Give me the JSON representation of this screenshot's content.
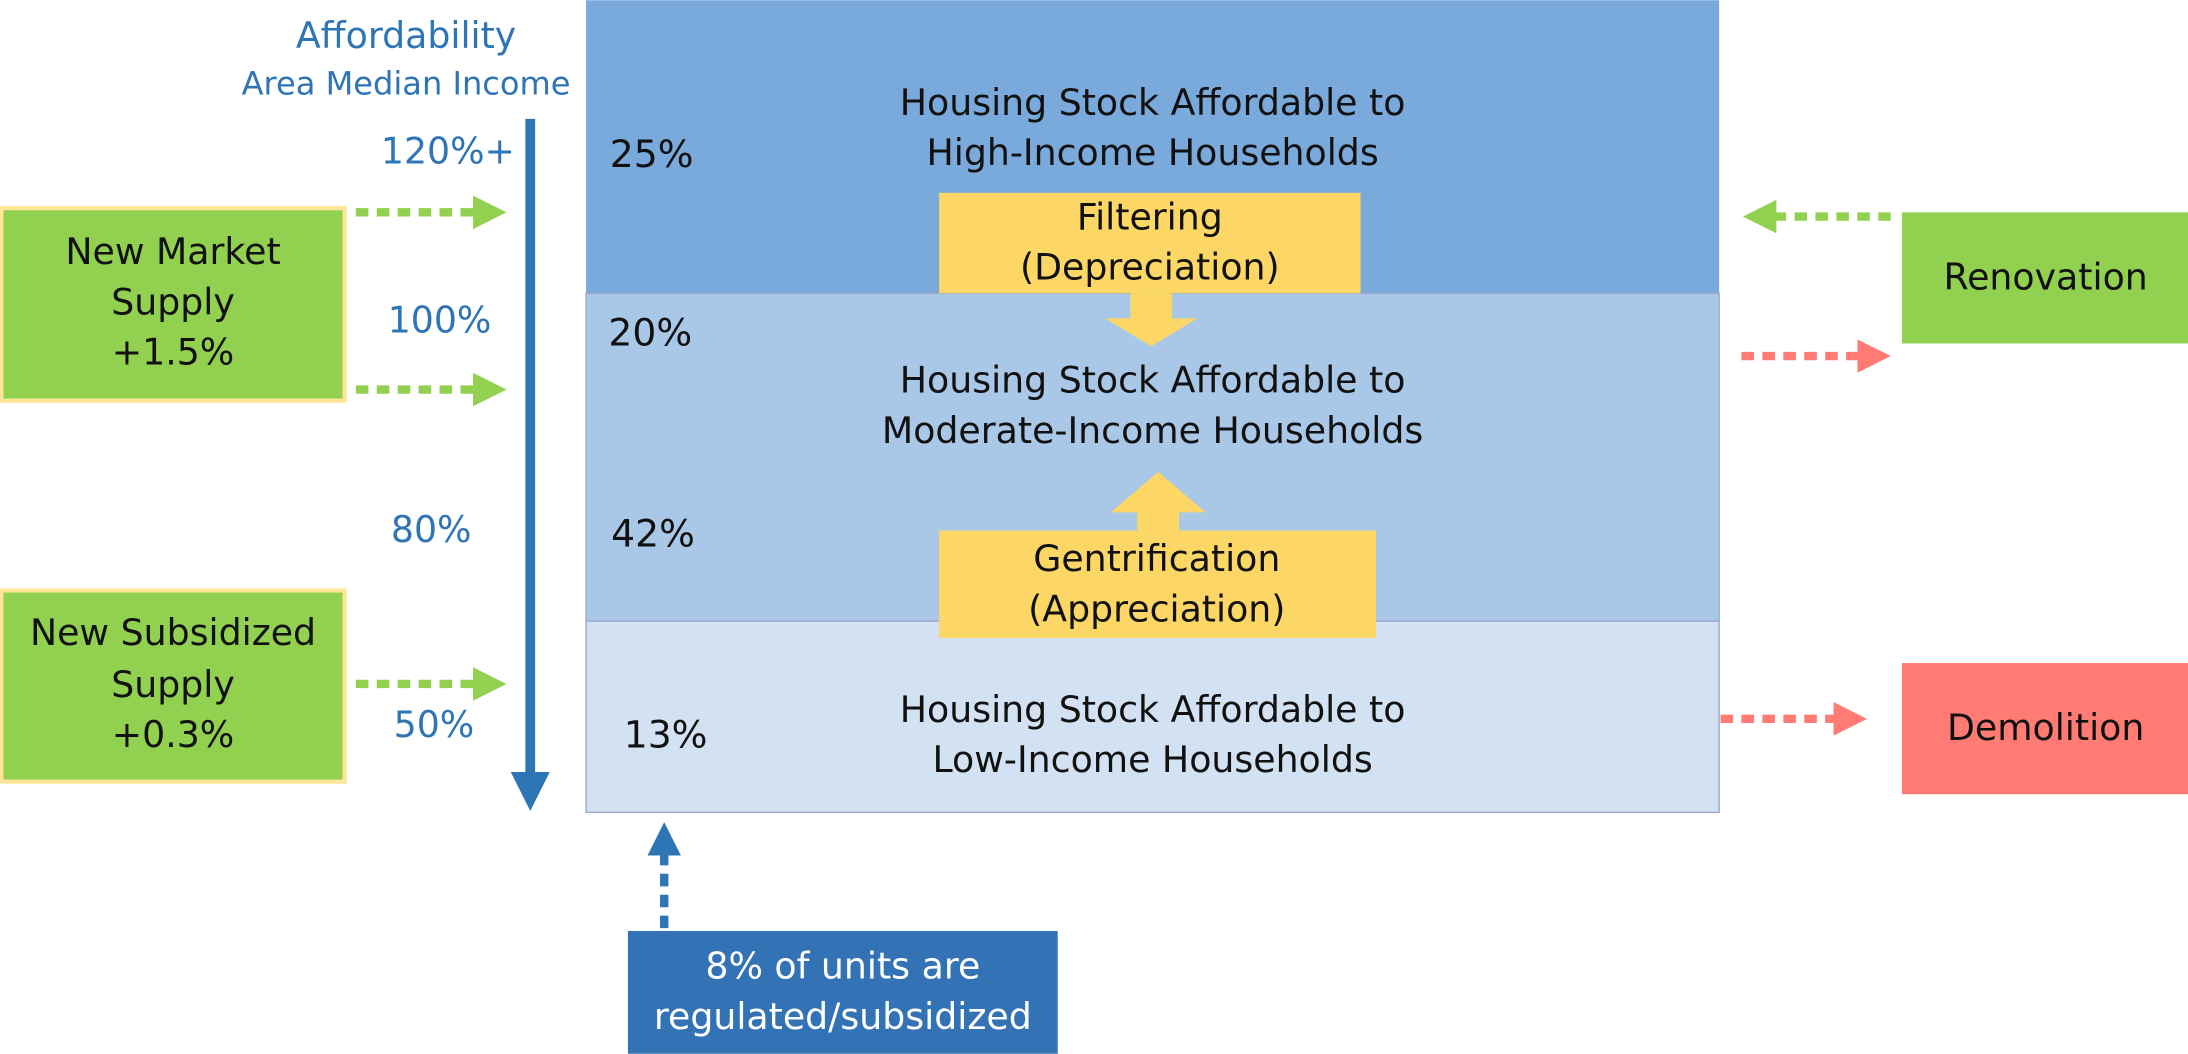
{
  "axis": {
    "title": "Affordability",
    "subtitle": "Area Median Income",
    "labels": [
      "120%+",
      "100%",
      "80%",
      "50%"
    ]
  },
  "tiers": [
    {
      "lines": [
        "Housing Stock Affordable to",
        "High-Income Households"
      ],
      "shares": [
        "25%"
      ]
    },
    {
      "lines": [
        "Housing Stock Affordable to",
        "Moderate-Income Households"
      ],
      "shares": [
        "20%",
        "42%"
      ]
    },
    {
      "lines": [
        "Housing Stock Affordable to",
        "Low-Income Households"
      ],
      "shares": [
        "13%"
      ]
    }
  ],
  "flows": [
    {
      "lines": [
        "Filtering",
        "(Depreciation)"
      ]
    },
    {
      "lines": [
        "Gentrification",
        "(Appreciation)"
      ]
    }
  ],
  "inputs": [
    {
      "lines": [
        "New Market",
        "Supply",
        "+1.5%"
      ]
    },
    {
      "lines": [
        "New Subsidized",
        "Supply",
        "+0.3%"
      ]
    }
  ],
  "outputs": [
    {
      "label": "Renovation"
    },
    {
      "label": "Demolition"
    }
  ],
  "note": {
    "lines": [
      "8% of units are",
      "regulated/subsidized"
    ]
  }
}
